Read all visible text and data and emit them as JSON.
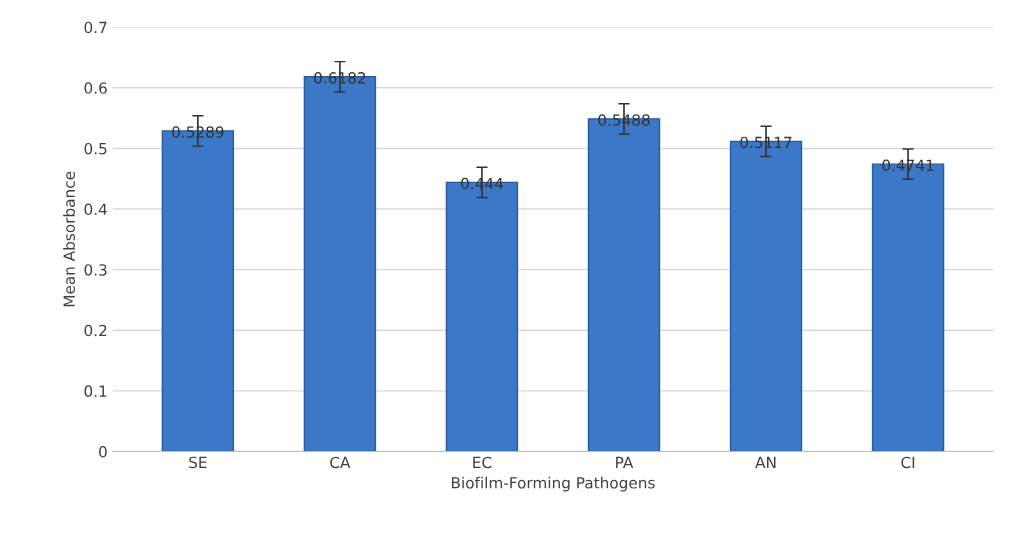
{
  "chart_data": {
    "type": "bar",
    "xlabel": "Biofilm-Forming Pathogens",
    "ylabel": "Mean Absorbance",
    "categories": [
      "SE",
      "CA",
      "EC",
      "PA",
      "AN",
      "CI"
    ],
    "values": [
      0.5289,
      0.6182,
      0.444,
      0.5488,
      0.5117,
      0.4741
    ],
    "errors": [
      0.025,
      0.025,
      0.025,
      0.025,
      0.025,
      0.025
    ],
    "color": "#3b78c8",
    "ylim": [
      0,
      0.7
    ],
    "yticks": [
      0,
      {
        "value": 0.1,
        "label": "0.1"
      },
      {
        "value": 0.2,
        "label": "0.2"
      },
      {
        "value": 0.3,
        "label": "0.3"
      },
      {
        "value": 0.4,
        "label": "0.4"
      },
      {
        "value": 0.5,
        "label": "0.5"
      },
      {
        "value": 0.6,
        "label": "0.6"
      },
      {
        "value": 0.7,
        "label": "0.7"
      }
    ],
    "grid": "y",
    "data_labels": true
  }
}
